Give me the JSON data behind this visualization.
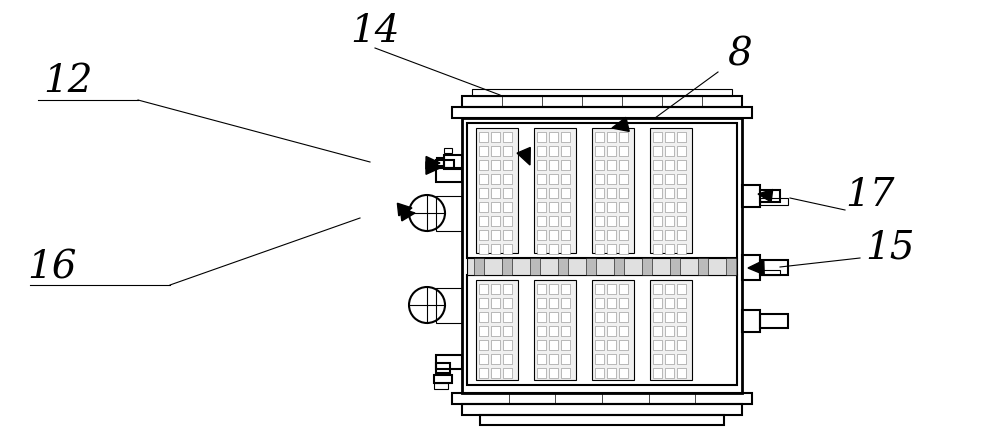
{
  "bg_color": "#ffffff",
  "line_color": "#000000",
  "figsize": [
    10.0,
    4.45
  ],
  "dpi": 100,
  "label_fontsize": 28
}
